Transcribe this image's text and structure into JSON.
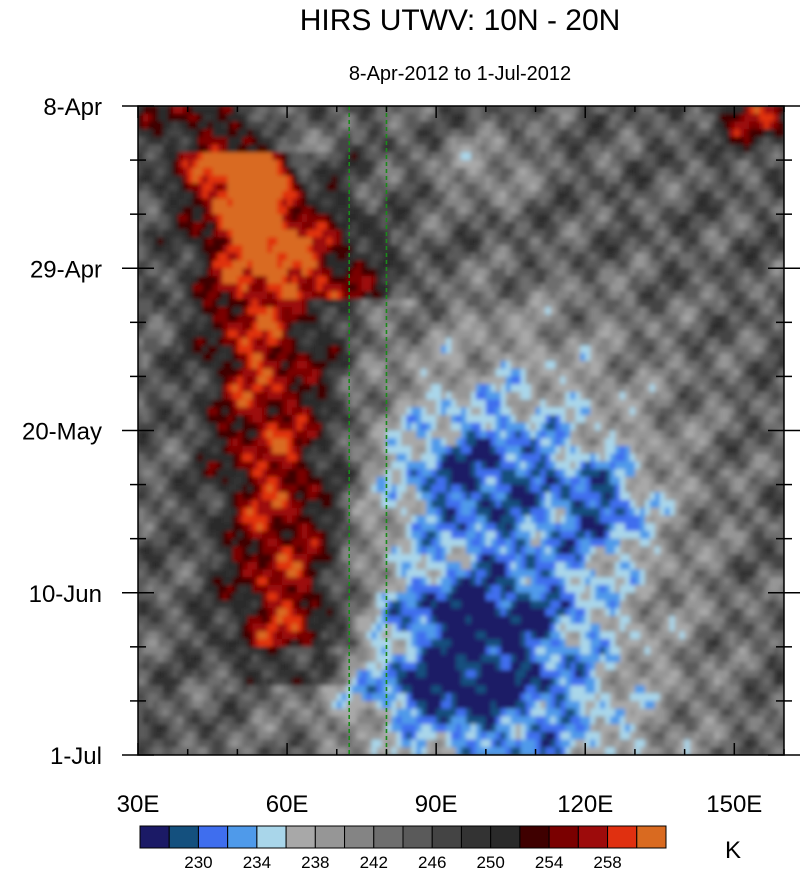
{
  "chart_data": {
    "type": "heatmap",
    "title": "HIRS UTWV: 10N - 20N",
    "subtitle": "8-Apr-2012 to 1-Jul-2012",
    "x_axis": {
      "range": [
        30,
        160
      ],
      "ticks": [
        30,
        60,
        90,
        120,
        150
      ],
      "tick_labels": [
        "30E",
        "60E",
        "90E",
        "120E",
        "150E"
      ]
    },
    "y_axis": {
      "range": [
        "8-Apr-2012",
        "1-Jul-2012"
      ],
      "inverted": true,
      "ticks": [
        "8-Apr-2012",
        "29-Apr-2012",
        "20-May-2012",
        "10-Jun-2012",
        "1-Jul-2012"
      ],
      "tick_labels": [
        "8-Apr",
        "29-Apr",
        "20-May",
        "10-Jun",
        "1-Jul"
      ]
    },
    "reference_lines_lon": [
      72.5,
      80
    ],
    "colorbar": {
      "unit": "K",
      "levels": [
        228,
        230,
        232,
        234,
        236,
        238,
        240,
        242,
        244,
        246,
        248,
        250,
        252,
        254,
        256,
        258,
        260
      ],
      "labeled_levels": [
        "230",
        "234",
        "238",
        "242",
        "246",
        "250",
        "254",
        "258"
      ],
      "colors": [
        "#1b1a66",
        "#14507e",
        "#3f6eee",
        "#4f9aea",
        "#a9d6ea",
        "#a8a8a8",
        "#969696",
        "#848484",
        "#6e6e6e",
        "#5a5a5a",
        "#444444",
        "#333333",
        "#2a2a2a",
        "#3f0000",
        "#7a0000",
        "#9d0b0b",
        "#e03010",
        "#d96a20"
      ]
    },
    "features": [
      {
        "level": "high",
        "lon": [
          35,
          72
        ],
        "date": [
          "16-Apr-2012",
          "20-Jun-2012"
        ]
      },
      {
        "level": "high",
        "lon": [
          140,
          160
        ],
        "date": [
          "8-Apr-2012",
          "11-Apr-2012"
        ]
      },
      {
        "level": "low",
        "lon": [
          75,
          160
        ],
        "date": [
          "1-May-2012",
          "1-Jul-2012"
        ]
      },
      {
        "level": "lowest",
        "lon": [
          85,
          130
        ],
        "date": [
          "1-Jun-2012",
          "16-Jun-2012"
        ]
      }
    ]
  }
}
